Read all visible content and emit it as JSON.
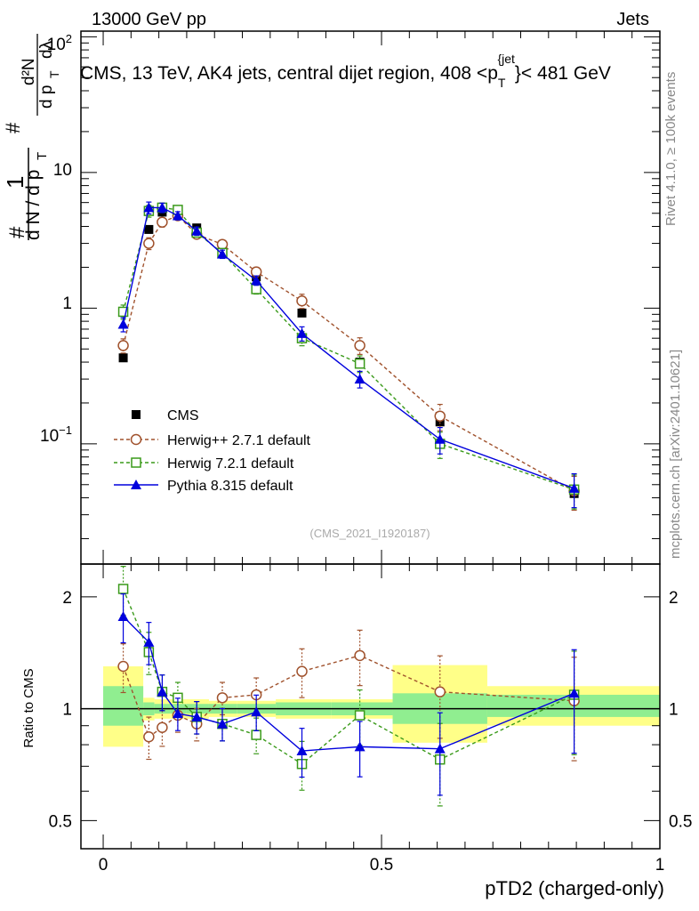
{
  "header": {
    "left": "13000 GeV pp",
    "right": "Jets"
  },
  "side_labels": {
    "rivet": "Rivet 4.1.0, ≥ 100k events",
    "source": "mcplots.cern.ch [arXiv:2401.10621]"
  },
  "watermark": "(CMS_2021_I1920187)",
  "chart_data": [
    {
      "type": "line",
      "panel": "main",
      "title": "CMS, 13 TeV, AK4 jets, central dijet region, 408 <p_T^{jet}< 481 GeV",
      "title_parts": {
        "main": "CMS, 13 TeV, AK4 jets, central dijet region, 408 <p",
        "sub": "T",
        "sup": "{jet",
        "tail": "}< 481 GeV"
      },
      "ylabel": "1/(d N / d p_T) · d²N/(d p_T d λ)",
      "ylabel_parts": {
        "hash": "#",
        "one": "1",
        "denom": "d N / d p",
        "num": "d²N",
        "den2": "d p",
        "T": "T",
        "dlambda": "dλ"
      },
      "yscale": "log",
      "ylim": [
        0.013,
        110
      ],
      "xlim": [
        -0.04,
        1.0
      ],
      "ytick_labels": [
        "10^{-1}",
        "1",
        "10",
        "10^{2}"
      ],
      "ytick_text": {
        "e1m": "10",
        "e1m_exp": "−1",
        "one": "1",
        "ten": "10",
        "e2": "10",
        "e2_exp": "2"
      },
      "x": [
        0.036,
        0.082,
        0.106,
        0.134,
        0.168,
        0.214,
        0.275,
        0.357,
        0.461,
        0.605,
        0.846
      ],
      "series": [
        {
          "name": "CMS",
          "marker": "square-filled",
          "color": "#000000",
          "style": "points",
          "values": [
            0.43,
            3.8,
            5.1,
            4.9,
            3.9,
            2.8,
            1.7,
            0.92,
            0.4,
            0.145,
            0.043
          ]
        },
        {
          "name": "Herwig++ 2.7.1 default",
          "marker": "circle-open",
          "color": "#a0522d",
          "style": "dashed",
          "values": [
            0.53,
            3.0,
            4.3,
            4.8,
            3.5,
            2.95,
            1.85,
            1.13,
            0.53,
            0.16,
            0.045
          ]
        },
        {
          "name": "Herwig 7.2.1 default",
          "marker": "square-open",
          "color": "#3a9a1a",
          "style": "dashed",
          "values": [
            0.94,
            5.2,
            5.5,
            5.3,
            3.6,
            2.55,
            1.38,
            0.6,
            0.39,
            0.1,
            0.046
          ]
        },
        {
          "name": "Pythia 8.315 default",
          "marker": "triangle-filled",
          "color": "#0000dd",
          "style": "solid",
          "values": [
            0.76,
            5.5,
            5.5,
            4.8,
            3.7,
            2.5,
            1.6,
            0.65,
            0.3,
            0.108,
            0.047
          ]
        }
      ]
    },
    {
      "type": "line",
      "panel": "ratio",
      "ylabel": "Ratio to CMS",
      "yscale": "log",
      "ylim": [
        0.42,
        2.45
      ],
      "xlim": [
        -0.04,
        1.0
      ],
      "xlabel": "pTD2 (charged-only)",
      "ytick_labels": [
        "0.5",
        "1",
        "2"
      ],
      "xtick_labels": [
        "0",
        "0.5",
        "1"
      ],
      "x": [
        0.036,
        0.082,
        0.106,
        0.134,
        0.168,
        0.214,
        0.275,
        0.357,
        0.461,
        0.605,
        0.846
      ],
      "bands": {
        "edges": [
          0.0,
          0.072,
          0.092,
          0.12,
          0.15,
          0.19,
          0.24,
          0.31,
          0.41,
          0.52,
          0.69,
          1.0
        ],
        "stat_lo": [
          0.9,
          0.96,
          0.97,
          0.97,
          0.97,
          0.97,
          0.97,
          0.96,
          0.96,
          0.91,
          0.95
        ],
        "stat_hi": [
          1.15,
          1.04,
          1.03,
          1.03,
          1.03,
          1.03,
          1.03,
          1.04,
          1.04,
          1.1,
          1.09
        ],
        "tot_lo": [
          0.79,
          0.93,
          0.94,
          0.94,
          0.94,
          0.95,
          0.95,
          0.94,
          0.94,
          0.81,
          0.9
        ],
        "tot_hi": [
          1.3,
          1.07,
          1.06,
          1.06,
          1.06,
          1.05,
          1.05,
          1.06,
          1.06,
          1.31,
          1.15
        ]
      },
      "series": [
        {
          "name": "Herwig++ 2.7.1 default",
          "color": "#a0522d",
          "style": "dashed",
          "marker": "circle-open",
          "values": [
            1.3,
            0.84,
            0.89,
            0.96,
            0.91,
            1.07,
            1.09,
            1.26,
            1.39,
            1.11,
            1.05
          ]
        },
        {
          "name": "Herwig 7.2.1 default",
          "color": "#3a9a1a",
          "style": "dashed",
          "marker": "square-open",
          "values": [
            2.1,
            1.42,
            1.11,
            1.07,
            0.95,
            0.91,
            0.85,
            0.71,
            0.96,
            0.73,
            1.09
          ]
        },
        {
          "name": "Pythia 8.315 default",
          "color": "#0000dd",
          "style": "solid",
          "marker": "triangle-filled",
          "values": [
            1.77,
            1.51,
            1.11,
            0.97,
            0.95,
            0.91,
            0.98,
            0.77,
            0.79,
            0.78,
            1.1
          ]
        }
      ]
    }
  ]
}
